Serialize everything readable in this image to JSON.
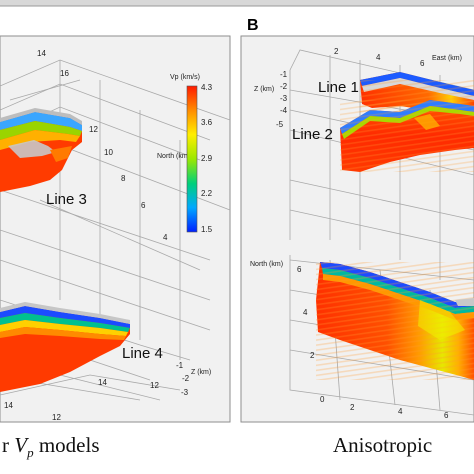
{
  "panel_b_label": "B",
  "colorbar": {
    "title": "Vp (km/s)",
    "ticks": [
      "4.3",
      "3.6",
      "2.9",
      "2.2",
      "1.5"
    ],
    "colors": [
      "#ff1a00",
      "#ff8c00",
      "#ffee00",
      "#9be800",
      "#00d07a",
      "#00a8ff",
      "#0020ff"
    ]
  },
  "panel_a": {
    "lines": [
      "Line 3",
      "Line 4"
    ],
    "north_label": "North (km)",
    "z_label": "Z (km)",
    "top_ticks": [
      "14",
      "16"
    ],
    "side_ticks": [
      "12",
      "10",
      "8",
      "6",
      "4"
    ],
    "lower_ticks": [
      "14",
      "12"
    ],
    "right_ticks": [
      "-1",
      "-2",
      "-3"
    ],
    "bottom_ticks": [
      "14",
      "12"
    ]
  },
  "panel_b": {
    "lines": [
      "Line 1",
      "Line 2"
    ],
    "east_label": "East (km)",
    "z_label": "Z (km)",
    "north_label": "North (km)",
    "top_ticks": [
      "2",
      "4",
      "6"
    ],
    "z_ticks": [
      "-1",
      "-2",
      "-3",
      "-4",
      "-5"
    ],
    "north_ticks": [
      "6",
      "4",
      "2",
      "0"
    ],
    "bottom_ticks": [
      "2",
      "4",
      "6"
    ]
  },
  "captions": {
    "left_prefix": "r ",
    "left_symbol": "V",
    "left_subscript": "p",
    "left_suffix": " models",
    "right": "Anisotropic"
  }
}
